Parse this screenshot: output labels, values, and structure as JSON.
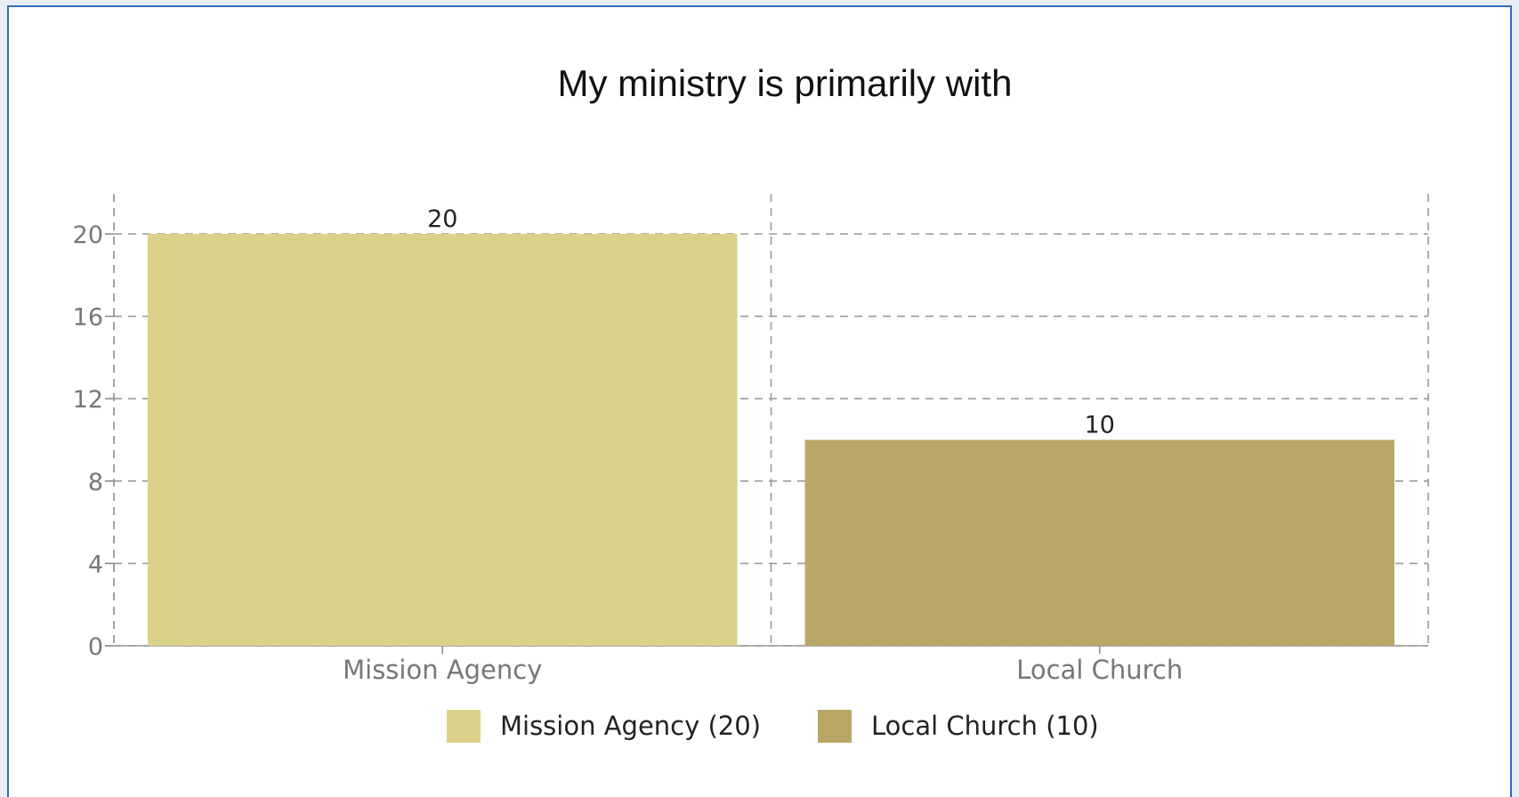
{
  "chart_data": {
    "type": "bar",
    "title": "My ministry is primarily with",
    "categories": [
      "Mission Agency",
      "Local Church"
    ],
    "values": [
      20,
      10
    ],
    "data_labels": [
      "20",
      "10"
    ],
    "colors": [
      "#dcd188",
      "#b9a768"
    ],
    "ylim": [
      0,
      22
    ],
    "yticks": [
      0,
      4,
      8,
      12,
      16,
      20
    ],
    "ytick_labels": [
      "0",
      "4",
      "8",
      "12",
      "16",
      "20"
    ],
    "grid": "dashed",
    "legend": {
      "placement": "bottom-center",
      "entries": [
        "Mission Agency (20)",
        "Local Church (10)"
      ]
    }
  }
}
